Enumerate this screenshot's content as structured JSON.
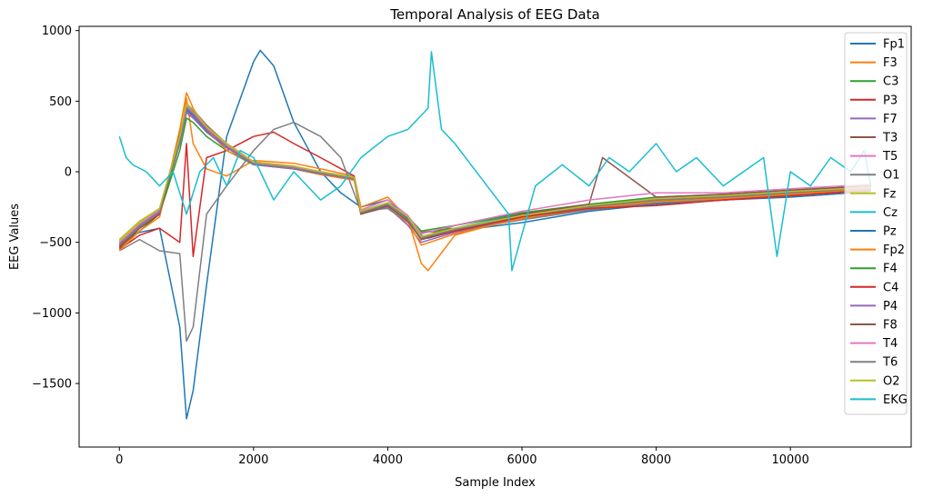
{
  "chart_data": {
    "type": "line",
    "title": "Temporal Analysis of EEG Data",
    "xlabel": "Sample Index",
    "ylabel": "EEG Values",
    "xlim": [
      -600,
      11800
    ],
    "ylim": [
      -1950,
      1030
    ],
    "xticks": [
      0,
      2000,
      4000,
      6000,
      8000,
      10000
    ],
    "xtick_labels": [
      "0",
      "2000",
      "4000",
      "6000",
      "8000",
      "10000"
    ],
    "yticks": [
      1000,
      500,
      0,
      -500,
      -1000,
      -1500
    ],
    "ytick_labels": [
      "1000",
      "500",
      "0",
      "−500",
      "−1000",
      "−1500"
    ],
    "grid": false,
    "legend_position": "top-right",
    "series": [
      {
        "name": "Fp1",
        "color": "#1f77b4",
        "x": [
          0,
          300,
          600,
          900,
          1000,
          1100,
          1300,
          1600,
          2000,
          2100,
          2300,
          2600,
          3000,
          3300,
          3600,
          4000,
          4300,
          4500,
          4600,
          5000,
          6000,
          7000,
          8000,
          9000,
          10000,
          11200
        ],
        "y": [
          -480,
          -430,
          -400,
          -1100,
          -1750,
          -1550,
          -800,
          250,
          780,
          860,
          750,
          350,
          0,
          -150,
          -250,
          -200,
          -330,
          -450,
          -470,
          -420,
          -360,
          -280,
          -230,
          -200,
          -180,
          -140
        ]
      },
      {
        "name": "F3",
        "color": "#ff7f0e",
        "x": [
          0,
          300,
          600,
          900,
          1000,
          1100,
          1300,
          1600,
          2000,
          2600,
          3000,
          3500,
          3600,
          4000,
          4300,
          4500,
          4600,
          5000,
          6000,
          7000,
          8000,
          9000,
          10000,
          11200
        ],
        "y": [
          -550,
          -400,
          -300,
          200,
          520,
          200,
          20,
          -30,
          80,
          60,
          20,
          -30,
          -250,
          -180,
          -330,
          -650,
          -700,
          -450,
          -320,
          -260,
          -210,
          -200,
          -170,
          -130
        ]
      },
      {
        "name": "C3",
        "color": "#2ca02c",
        "x": [
          0,
          300,
          600,
          900,
          1000,
          1100,
          1300,
          1600,
          2000,
          2600,
          3000,
          3500,
          3600,
          4000,
          4300,
          4500,
          5000,
          6000,
          7000,
          8000,
          9000,
          10000,
          11200
        ],
        "y": [
          -530,
          -420,
          -300,
          150,
          380,
          350,
          250,
          150,
          50,
          20,
          -20,
          -50,
          -280,
          -220,
          -320,
          -420,
          -380,
          -300,
          -250,
          -200,
          -190,
          -160,
          -120
        ]
      },
      {
        "name": "P3",
        "color": "#d62728",
        "x": [
          0,
          300,
          600,
          900,
          1000,
          1100,
          1300,
          1600,
          2000,
          2300,
          2600,
          3000,
          3500,
          3600,
          4000,
          4500,
          5000,
          6000,
          7000,
          8000,
          9000,
          10000,
          11200
        ],
        "y": [
          -550,
          -450,
          -400,
          -500,
          200,
          -600,
          100,
          150,
          250,
          280,
          200,
          100,
          -30,
          -280,
          -230,
          -430,
          -400,
          -330,
          -270,
          -220,
          -200,
          -170,
          -130
        ]
      },
      {
        "name": "F7",
        "color": "#9467bd",
        "x": [
          0,
          300,
          600,
          900,
          1000,
          1100,
          1300,
          1600,
          2000,
          2600,
          3000,
          3500,
          3600,
          4000,
          4300,
          4500,
          5000,
          6000,
          7000,
          8000,
          9000,
          10000,
          11200
        ],
        "y": [
          -520,
          -380,
          -280,
          200,
          420,
          380,
          280,
          180,
          60,
          30,
          0,
          -40,
          -300,
          -250,
          -380,
          -500,
          -430,
          -330,
          -270,
          -210,
          -190,
          -160,
          -120
        ]
      },
      {
        "name": "T3",
        "color": "#8c564b",
        "x": [
          0,
          300,
          600,
          900,
          1000,
          1100,
          1300,
          1600,
          2000,
          2600,
          3000,
          3500,
          3600,
          4000,
          4300,
          4500,
          5000,
          6000,
          7000,
          8000,
          9000,
          10000,
          11200
        ],
        "y": [
          -540,
          -400,
          -300,
          250,
          460,
          430,
          320,
          200,
          70,
          30,
          0,
          -50,
          -300,
          -240,
          -350,
          -480,
          -420,
          -320,
          -250,
          -200,
          -180,
          -150,
          -110
        ]
      },
      {
        "name": "T5",
        "color": "#e377c2",
        "x": [
          0,
          300,
          600,
          900,
          1000,
          1100,
          1300,
          1600,
          2000,
          2600,
          3000,
          3500,
          3600,
          4000,
          4300,
          4500,
          5000,
          6000,
          7000,
          8000,
          9000,
          10000,
          11200
        ],
        "y": [
          -500,
          -380,
          -280,
          220,
          450,
          400,
          300,
          190,
          60,
          20,
          -10,
          -40,
          -280,
          -220,
          -330,
          -460,
          -400,
          -300,
          -240,
          -180,
          -170,
          -140,
          -100
        ]
      },
      {
        "name": "O1",
        "color": "#7f7f7f",
        "x": [
          0,
          300,
          600,
          900,
          1000,
          1100,
          1300,
          1600,
          2000,
          2300,
          2600,
          3000,
          3300,
          3600,
          4000,
          4500,
          5000,
          6000,
          7000,
          8000,
          9000,
          10000,
          11200
        ],
        "y": [
          -560,
          -480,
          -560,
          -580,
          -1200,
          -1100,
          -300,
          -100,
          150,
          300,
          350,
          250,
          100,
          -280,
          -260,
          -430,
          -420,
          -340,
          -270,
          -220,
          -200,
          -170,
          -120
        ]
      },
      {
        "name": "Fz",
        "color": "#bcbd22",
        "x": [
          0,
          300,
          600,
          900,
          1000,
          1100,
          1300,
          1600,
          2000,
          2600,
          3000,
          3500,
          3600,
          4000,
          4300,
          4500,
          5000,
          6000,
          7000,
          8000,
          9000,
          10000,
          11200
        ],
        "y": [
          -480,
          -350,
          -260,
          250,
          480,
          440,
          320,
          200,
          70,
          40,
          0,
          -40,
          -280,
          -220,
          -320,
          -470,
          -400,
          -310,
          -240,
          -190,
          -170,
          -140,
          -110
        ]
      },
      {
        "name": "Cz",
        "color": "#17becf",
        "x": [
          0,
          300,
          600,
          900,
          1000,
          1100,
          1300,
          1600,
          2000,
          2600,
          3000,
          3500,
          3600,
          4000,
          4300,
          4500,
          5000,
          6000,
          7000,
          8000,
          9000,
          10000,
          11200
        ],
        "y": [
          -500,
          -370,
          -270,
          230,
          460,
          420,
          300,
          190,
          60,
          30,
          -10,
          -40,
          -280,
          -220,
          -320,
          -460,
          -400,
          -300,
          -240,
          -190,
          -170,
          -140,
          -110
        ]
      },
      {
        "name": "Pz",
        "color": "#1f77b4",
        "x": [
          0,
          300,
          600,
          900,
          1000,
          1100,
          1300,
          1600,
          2000,
          2600,
          3000,
          3500,
          3600,
          4000,
          4300,
          4500,
          5000,
          6000,
          7000,
          8000,
          9000,
          10000,
          11200
        ],
        "y": [
          -510,
          -390,
          -290,
          210,
          440,
          400,
          290,
          180,
          55,
          25,
          -10,
          -45,
          -290,
          -230,
          -330,
          -470,
          -410,
          -310,
          -250,
          -200,
          -180,
          -150,
          -115
        ]
      },
      {
        "name": "Fp2",
        "color": "#ff7f0e",
        "x": [
          0,
          300,
          600,
          900,
          1000,
          1100,
          1300,
          1600,
          2000,
          2600,
          3000,
          3500,
          3600,
          4000,
          4300,
          4500,
          5000,
          6000,
          7000,
          8000,
          9000,
          10000,
          11200
        ],
        "y": [
          -560,
          -420,
          -320,
          300,
          560,
          450,
          300,
          150,
          60,
          20,
          -20,
          -60,
          -300,
          -240,
          -360,
          -520,
          -440,
          -330,
          -260,
          -210,
          -190,
          -160,
          -120
        ]
      },
      {
        "name": "F4",
        "color": "#2ca02c",
        "x": [
          0,
          300,
          600,
          900,
          1000,
          1100,
          1300,
          1600,
          2000,
          2600,
          3000,
          3500,
          3600,
          4000,
          4300,
          4500,
          5000,
          6000,
          7000,
          8000,
          9000,
          10000,
          11200
        ],
        "y": [
          -520,
          -390,
          -290,
          230,
          470,
          430,
          310,
          190,
          65,
          30,
          -5,
          -45,
          -290,
          -230,
          -340,
          -470,
          -380,
          -290,
          -230,
          -180,
          -160,
          -130,
          -100
        ]
      },
      {
        "name": "C4",
        "color": "#d62728",
        "x": [
          0,
          300,
          600,
          900,
          1000,
          1100,
          1300,
          1600,
          2000,
          2600,
          3000,
          3500,
          3600,
          4000,
          4300,
          4500,
          5000,
          6000,
          7000,
          8000,
          9000,
          10000,
          11200
        ],
        "y": [
          -530,
          -400,
          -300,
          220,
          450,
          410,
          300,
          180,
          60,
          25,
          -10,
          -50,
          -300,
          -240,
          -350,
          -480,
          -420,
          -320,
          -260,
          -240,
          -200,
          -170,
          -130
        ]
      },
      {
        "name": "P4",
        "color": "#9467bd",
        "x": [
          0,
          300,
          600,
          900,
          1000,
          1100,
          1300,
          1600,
          2000,
          2600,
          3000,
          3500,
          3600,
          4000,
          4300,
          4500,
          5000,
          6000,
          7000,
          8000,
          9000,
          10000,
          11200
        ],
        "y": [
          -510,
          -380,
          -280,
          210,
          430,
          390,
          280,
          170,
          50,
          20,
          -15,
          -50,
          -290,
          -230,
          -340,
          -470,
          -410,
          -300,
          -240,
          -190,
          -170,
          -140,
          -110
        ]
      },
      {
        "name": "F8",
        "color": "#8c564b",
        "x": [
          0,
          300,
          600,
          900,
          1000,
          1100,
          1300,
          1600,
          2000,
          2600,
          3000,
          3500,
          3600,
          4000,
          4300,
          4500,
          5000,
          6000,
          7000,
          7200,
          8000,
          9000,
          10000,
          11200
        ],
        "y": [
          -540,
          -400,
          -290,
          260,
          480,
          440,
          330,
          200,
          70,
          35,
          0,
          -40,
          -300,
          -240,
          -350,
          -480,
          -410,
          -300,
          -230,
          100,
          -180,
          -160,
          -130,
          -100
        ]
      },
      {
        "name": "T4",
        "color": "#e377c2",
        "x": [
          0,
          300,
          600,
          900,
          1000,
          1100,
          1300,
          1600,
          2000,
          2600,
          3000,
          3500,
          3600,
          4000,
          4300,
          4500,
          5000,
          6000,
          7000,
          8000,
          9000,
          10000,
          11200
        ],
        "y": [
          -500,
          -370,
          -270,
          240,
          470,
          420,
          310,
          190,
          60,
          30,
          -5,
          -40,
          -270,
          -200,
          -310,
          -440,
          -380,
          -280,
          -200,
          -150,
          -150,
          -120,
          -90
        ]
      },
      {
        "name": "T6",
        "color": "#7f7f7f",
        "x": [
          0,
          300,
          600,
          900,
          1000,
          1100,
          1300,
          1600,
          2000,
          2600,
          3000,
          3500,
          3600,
          4000,
          4300,
          4500,
          5000,
          6000,
          7000,
          8000,
          9000,
          10000,
          11200
        ],
        "y": [
          -520,
          -390,
          -290,
          220,
          450,
          410,
          300,
          180,
          55,
          25,
          -10,
          -45,
          -290,
          -230,
          -340,
          -470,
          -410,
          -310,
          -250,
          -200,
          -180,
          -150,
          -115
        ]
      },
      {
        "name": "O2",
        "color": "#bcbd22",
        "x": [
          0,
          300,
          600,
          900,
          1000,
          1100,
          1300,
          1600,
          2000,
          2600,
          3000,
          3500,
          3600,
          4000,
          4300,
          4500,
          5000,
          6000,
          7000,
          8000,
          9000,
          10000,
          11200
        ],
        "y": [
          -490,
          -360,
          -260,
          250,
          480,
          440,
          320,
          200,
          70,
          40,
          0,
          -40,
          -280,
          -220,
          -320,
          -460,
          -400,
          -310,
          -240,
          -190,
          -170,
          -140,
          -110
        ]
      },
      {
        "name": "EKG",
        "color": "#17becf",
        "x": [
          0,
          100,
          200,
          400,
          600,
          800,
          1000,
          1200,
          1400,
          1600,
          1800,
          2000,
          2300,
          2600,
          3000,
          3300,
          3600,
          4000,
          4300,
          4600,
          4650,
          4800,
          5000,
          5400,
          5800,
          5850,
          6200,
          6600,
          7000,
          7300,
          7600,
          8000,
          8300,
          8600,
          9000,
          9300,
          9600,
          9800,
          10000,
          10300,
          10600,
          10900,
          11100,
          11200
        ],
        "y": [
          250,
          100,
          50,
          0,
          -100,
          0,
          -300,
          0,
          100,
          -100,
          150,
          100,
          -200,
          0,
          -200,
          -100,
          100,
          250,
          300,
          450,
          850,
          300,
          200,
          -50,
          -300,
          -700,
          -100,
          50,
          -100,
          100,
          0,
          200,
          0,
          100,
          -100,
          0,
          100,
          -600,
          0,
          -100,
          100,
          0,
          150,
          -100
        ]
      }
    ]
  }
}
